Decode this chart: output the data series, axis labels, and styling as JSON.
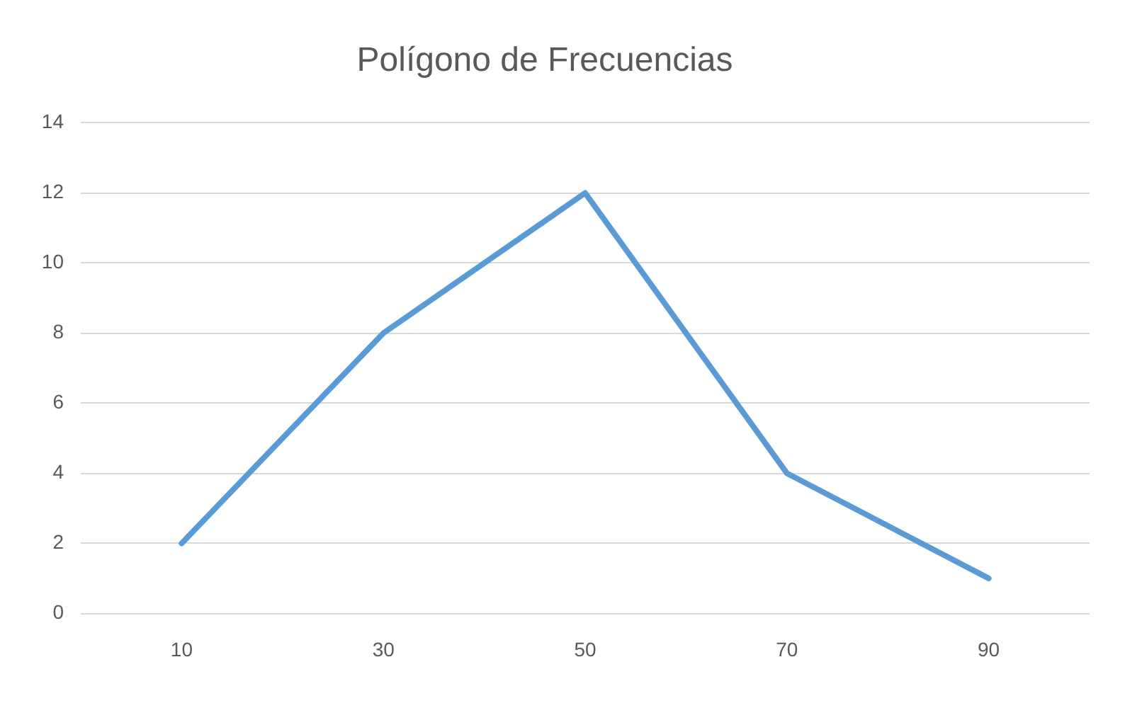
{
  "chart_data": {
    "type": "line",
    "title": "Polígono de Frecuencias",
    "categories": [
      "10",
      "30",
      "50",
      "70",
      "90"
    ],
    "values": [
      2,
      8,
      12,
      4,
      1
    ],
    "color": "#5b9bd5",
    "ylim": [
      0,
      14
    ],
    "yticks": [
      0,
      2,
      4,
      6,
      8,
      10,
      12,
      14
    ],
    "grid": "y",
    "legend": false,
    "marker": "none",
    "line_style": "solid"
  }
}
